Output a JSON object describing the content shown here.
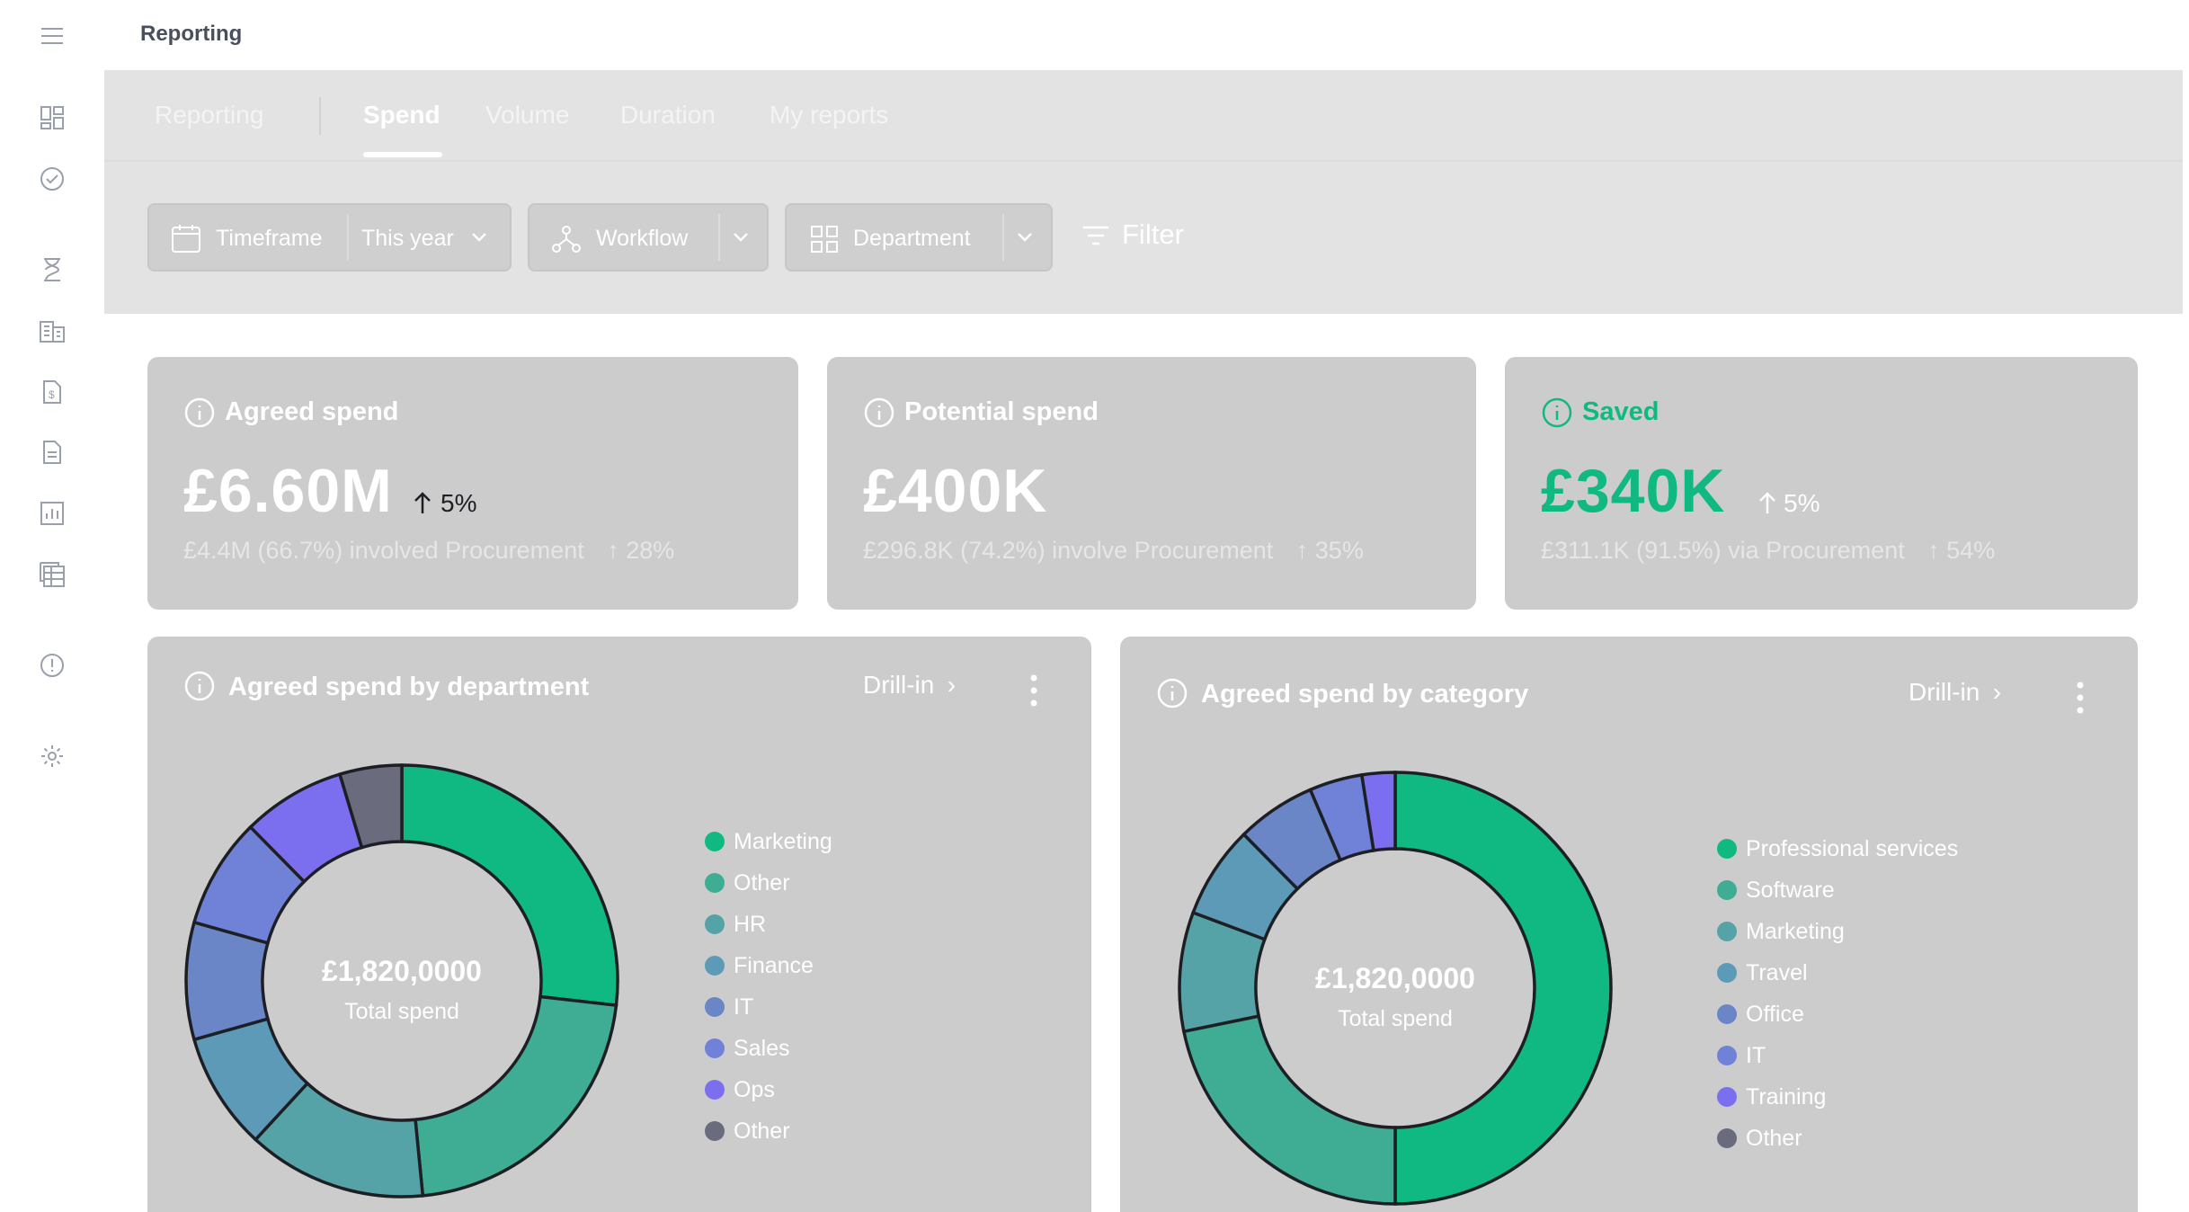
{
  "header": {
    "title": "Reporting"
  },
  "tabs": [
    {
      "label": "Reporting"
    },
    {
      "label": "Spend"
    },
    {
      "label": "Volume"
    },
    {
      "label": "Duration"
    },
    {
      "label": "My reports"
    }
  ],
  "filters": {
    "timeframe_label": "Timeframe",
    "timeframe_value": "This year",
    "workflow_label": "Workflow",
    "department_label": "Department",
    "filter_label": "Filter"
  },
  "stats": [
    {
      "title": "Agreed spend",
      "value": "£6.60M",
      "change": "5%",
      "sub_text": "£4.4M (66.7%) involved Procurement",
      "sub_change": "28%"
    },
    {
      "title": "Potential spend",
      "value": "£400K",
      "change": "",
      "sub_text": "£296.8K (74.2%) involve Procurement",
      "sub_change": "35%"
    },
    {
      "title": "Saved",
      "value": "£340K",
      "change": "5%",
      "sub_text": "£311.1K (91.5%) via Procurement",
      "sub_change": "54%"
    }
  ],
  "colors": {
    "accent_green": "#10b981",
    "text_dark": "#1d1f24"
  },
  "chart_data": [
    {
      "type": "pie",
      "title": "Agreed spend by department",
      "drill_label": "Drill-in",
      "center_value": "£1,820,0000",
      "center_label": "Total spend",
      "categories": [
        "Marketing",
        "Other",
        "HR",
        "Finance",
        "IT",
        "Sales",
        "Ops",
        "Other"
      ],
      "values": [
        26,
        21,
        13,
        8.5,
        8.5,
        8,
        7.5,
        4.5
      ],
      "colors": [
        "#10b981",
        "#3fad93",
        "#56a3a7",
        "#5c9ab8",
        "#6a86c7",
        "#6f82d8",
        "#7b6ff0",
        "#6a6b7c"
      ]
    },
    {
      "type": "pie",
      "title": "Agreed spend by category",
      "drill_label": "Drill-in",
      "center_value": "£1,820,0000",
      "center_label": "Total spend",
      "categories": [
        "Professional services",
        "Software",
        "Marketing",
        "Travel",
        "Office",
        "IT",
        "Training",
        "Other"
      ],
      "values": [
        50.5,
        22,
        9,
        7,
        6,
        4,
        2.5,
        0
      ],
      "colors": [
        "#10b981",
        "#3fad93",
        "#56a3a7",
        "#5c9ab8",
        "#6a86c7",
        "#6f82d8",
        "#7b6ff0",
        "#6a6b7c"
      ]
    }
  ]
}
